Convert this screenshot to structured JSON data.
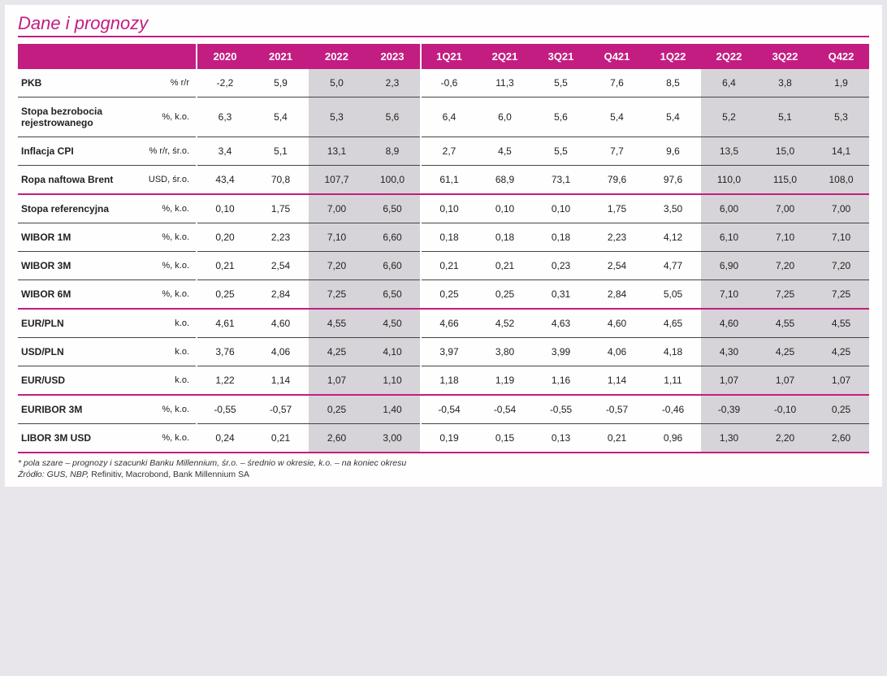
{
  "title": "Dane i prognozy",
  "columns_annual": [
    "2020",
    "2021",
    "2022",
    "2023"
  ],
  "columns_quarterly": [
    "1Q21",
    "2Q21",
    "3Q21",
    "Q421",
    "1Q22",
    "2Q22",
    "3Q22",
    "Q422"
  ],
  "sections": [
    [
      {
        "label": "PKB",
        "unit": "% r/r",
        "annual": [
          "-2,2",
          "5,9",
          "5,0",
          "2,3"
        ],
        "quarterly": [
          "-0,6",
          "11,3",
          "5,5",
          "7,6",
          "8,5",
          "6,4",
          "3,8",
          "1,9"
        ]
      },
      {
        "label": "Stopa bezrobocia rejestrowanego",
        "unit": "%, k.o.",
        "annual": [
          "6,3",
          "5,4",
          "5,3",
          "5,6"
        ],
        "quarterly": [
          "6,4",
          "6,0",
          "5,6",
          "5,4",
          "5,4",
          "5,2",
          "5,1",
          "5,3"
        ]
      },
      {
        "label": "Inflacja CPI",
        "unit": "% r/r, śr.o.",
        "annual": [
          "3,4",
          "5,1",
          "13,1",
          "8,9"
        ],
        "quarterly": [
          "2,7",
          "4,5",
          "5,5",
          "7,7",
          "9,6",
          "13,5",
          "15,0",
          "14,1"
        ]
      },
      {
        "label": "Ropa naftowa Brent",
        "unit": "USD, śr.o.",
        "annual": [
          "43,4",
          "70,8",
          "107,7",
          "100,0"
        ],
        "quarterly": [
          "61,1",
          "68,9",
          "73,1",
          "79,6",
          "97,6",
          "110,0",
          "115,0",
          "108,0"
        ]
      }
    ],
    [
      {
        "label": "Stopa referencyjna",
        "unit": "%, k.o.",
        "annual": [
          "0,10",
          "1,75",
          "7,00",
          "6,50"
        ],
        "quarterly": [
          "0,10",
          "0,10",
          "0,10",
          "1,75",
          "3,50",
          "6,00",
          "7,00",
          "7,00"
        ]
      },
      {
        "label": "WIBOR 1M",
        "unit": "%, k.o.",
        "annual": [
          "0,20",
          "2,23",
          "7,10",
          "6,60"
        ],
        "quarterly": [
          "0,18",
          "0,18",
          "0,18",
          "2,23",
          "4,12",
          "6,10",
          "7,10",
          "7,10"
        ]
      },
      {
        "label": "WIBOR 3M",
        "unit": "%, k.o.",
        "annual": [
          "0,21",
          "2,54",
          "7,20",
          "6,60"
        ],
        "quarterly": [
          "0,21",
          "0,21",
          "0,23",
          "2,54",
          "4,77",
          "6,90",
          "7,20",
          "7,20"
        ]
      },
      {
        "label": "WIBOR 6M",
        "unit": "%, k.o.",
        "annual": [
          "0,25",
          "2,84",
          "7,25",
          "6,50"
        ],
        "quarterly": [
          "0,25",
          "0,25",
          "0,31",
          "2,84",
          "5,05",
          "7,10",
          "7,25",
          "7,25"
        ]
      }
    ],
    [
      {
        "label": "EUR/PLN",
        "unit": "k.o.",
        "annual": [
          "4,61",
          "4,60",
          "4,55",
          "4,50"
        ],
        "quarterly": [
          "4,66",
          "4,52",
          "4,63",
          "4,60",
          "4,65",
          "4,60",
          "4,55",
          "4,55"
        ]
      },
      {
        "label": "USD/PLN",
        "unit": "k.o.",
        "annual": [
          "3,76",
          "4,06",
          "4,25",
          "4,10"
        ],
        "quarterly": [
          "3,97",
          "3,80",
          "3,99",
          "4,06",
          "4,18",
          "4,30",
          "4,25",
          "4,25"
        ]
      },
      {
        "label": "EUR/USD",
        "unit": "k.o.",
        "annual": [
          "1,22",
          "1,14",
          "1,07",
          "1,10"
        ],
        "quarterly": [
          "1,18",
          "1,19",
          "1,16",
          "1,14",
          "1,11",
          "1,07",
          "1,07",
          "1,07"
        ]
      }
    ],
    [
      {
        "label": "EURIBOR 3M",
        "unit": "%, k.o.",
        "annual": [
          "-0,55",
          "-0,57",
          "0,25",
          "1,40"
        ],
        "quarterly": [
          "-0,54",
          "-0,54",
          "-0,55",
          "-0,57",
          "-0,46",
          "-0,39",
          "-0,10",
          "0,25"
        ]
      },
      {
        "label": "LIBOR 3M USD",
        "unit": "%, k.o.",
        "annual": [
          "0,24",
          "0,21",
          "2,60",
          "3,00"
        ],
        "quarterly": [
          "0,19",
          "0,15",
          "0,13",
          "0,21",
          "0,96",
          "1,30",
          "2,20",
          "2,60"
        ]
      }
    ]
  ],
  "annual_shade_cols": [
    2,
    3
  ],
  "quarterly_shade_cols": [
    5,
    6,
    7
  ],
  "footnote_line1": "* pola szare – prognozy i szacunki Banku Millennium, śr.o. – średnio w okresie, k.o. – na koniec okresu",
  "footnote_src_label": "Źródło: GUS, NBP, ",
  "footnote_src_rest": "Refinitiv, Macrobond, Bank Millennium SA"
}
